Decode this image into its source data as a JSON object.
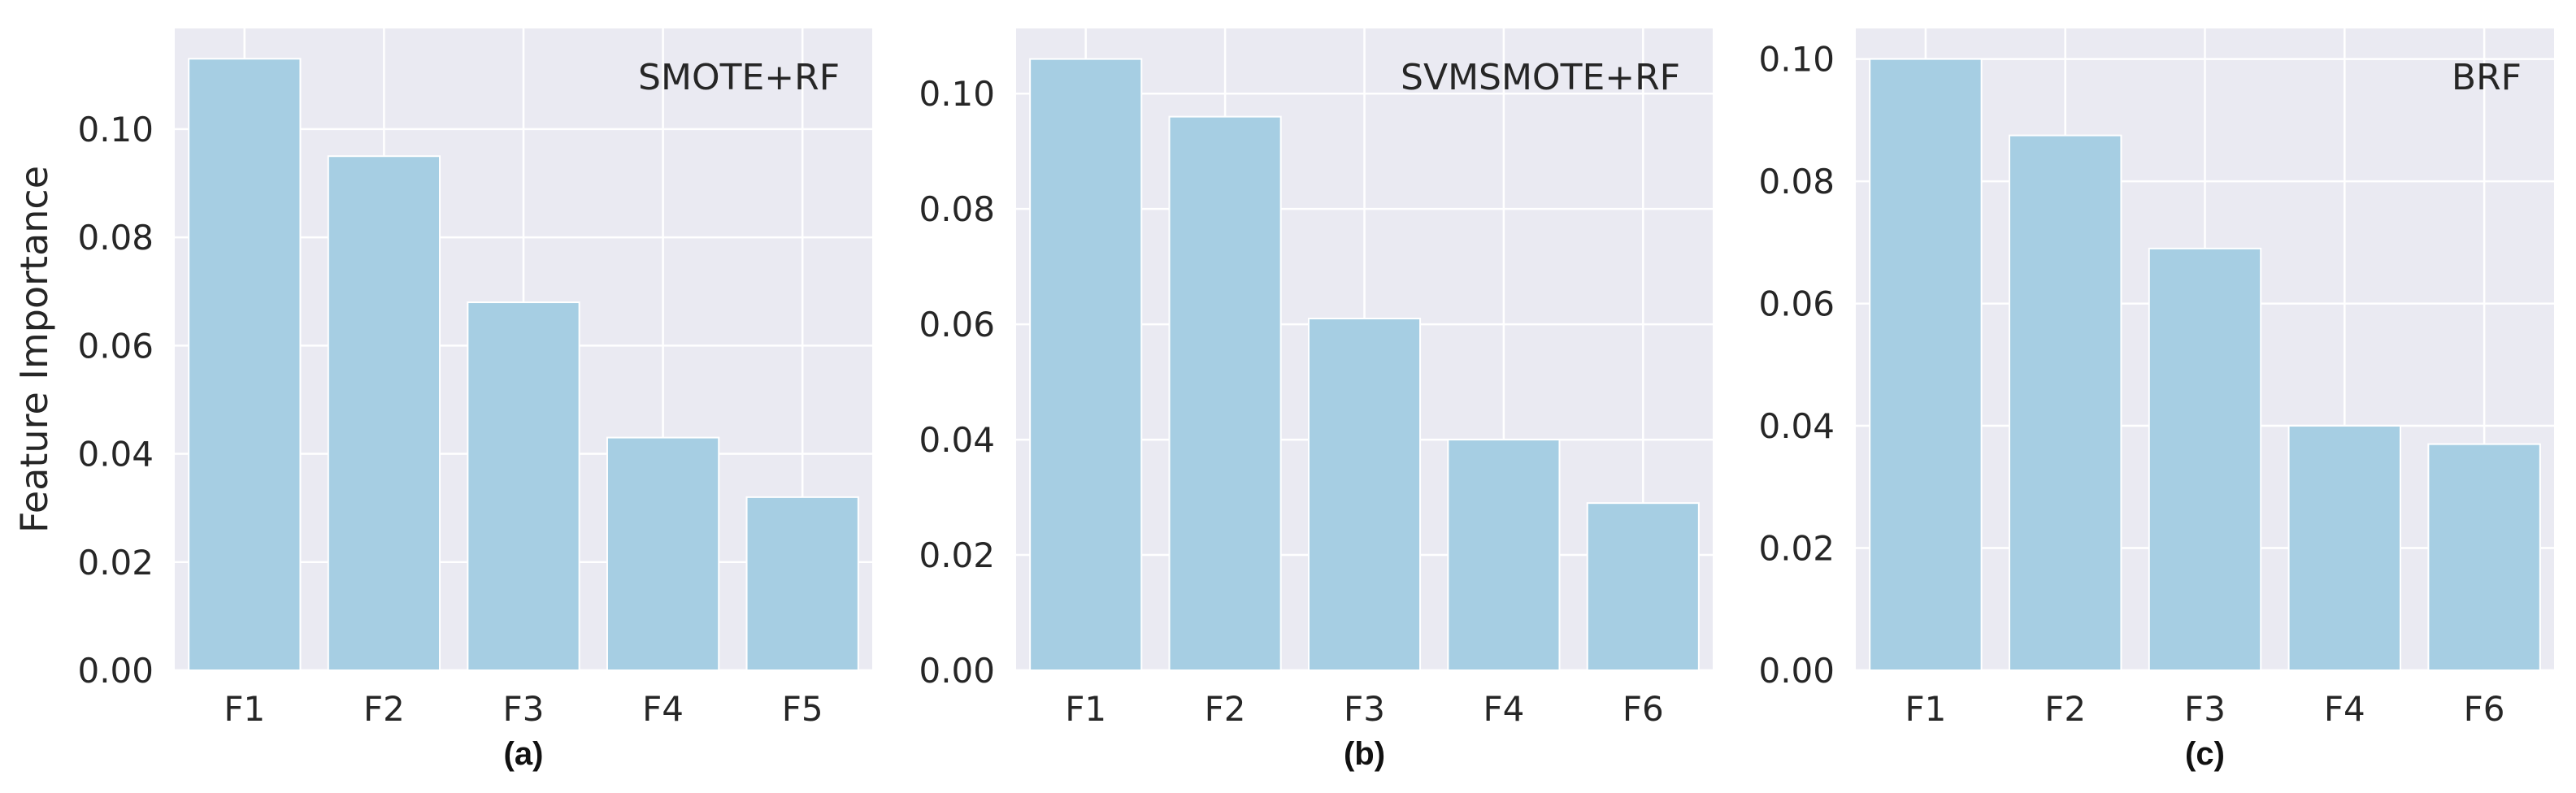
{
  "figure": {
    "y_axis_title": "Feature Importance",
    "bar_color": "#a6cee3",
    "background_color": "#eaeaf2",
    "grid_color": "#ffffff"
  },
  "chart_data": [
    {
      "type": "bar",
      "annotation": "SMOTE+RF",
      "subplot_label": "(a)",
      "categories": [
        "F1",
        "F2",
        "F3",
        "F4",
        "F5"
      ],
      "values": [
        0.113,
        0.095,
        0.068,
        0.043,
        0.032
      ],
      "ylabel": "Feature Importance",
      "ylim": [
        0,
        0.1186
      ],
      "yticks": [
        0.0,
        0.02,
        0.04,
        0.06,
        0.08,
        0.1
      ],
      "ytick_labels": [
        "0.00",
        "0.02",
        "0.04",
        "0.06",
        "0.08",
        "0.10"
      ],
      "grid": true
    },
    {
      "type": "bar",
      "annotation": "SVMSMOTE+RF",
      "subplot_label": "(b)",
      "categories": [
        "F1",
        "F2",
        "F3",
        "F4",
        "F6"
      ],
      "values": [
        0.106,
        0.096,
        0.061,
        0.04,
        0.029
      ],
      "ylabel": "",
      "ylim": [
        0,
        0.1113
      ],
      "yticks": [
        0.0,
        0.02,
        0.04,
        0.06,
        0.08,
        0.1
      ],
      "ytick_labels": [
        "0.00",
        "0.02",
        "0.04",
        "0.06",
        "0.08",
        "0.10"
      ],
      "grid": true
    },
    {
      "type": "bar",
      "annotation": "BRF",
      "subplot_label": "(c)",
      "categories": [
        "F1",
        "F2",
        "F3",
        "F4",
        "F6"
      ],
      "values": [
        0.1,
        0.0875,
        0.069,
        0.04,
        0.037
      ],
      "ylabel": "",
      "ylim": [
        0,
        0.105
      ],
      "yticks": [
        0.0,
        0.02,
        0.04,
        0.06,
        0.08,
        0.1
      ],
      "ytick_labels": [
        "0.00",
        "0.02",
        "0.04",
        "0.06",
        "0.08",
        "0.10"
      ],
      "grid": true
    }
  ]
}
